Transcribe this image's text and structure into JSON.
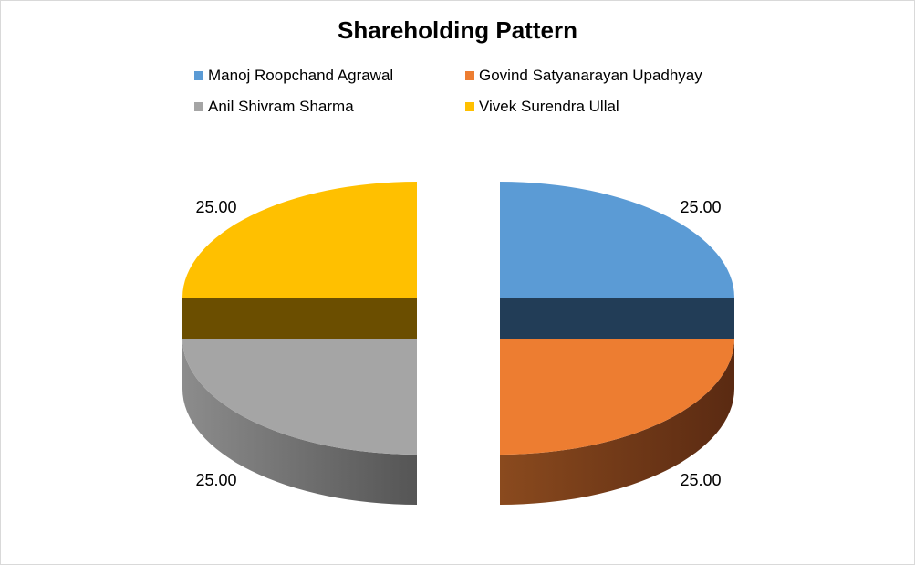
{
  "chart_data": {
    "type": "pie",
    "style": "3d-exploded",
    "title": "Shareholding Pattern",
    "legend_position": "top",
    "slices": [
      {
        "name": "Manoj Roopchand Agrawal",
        "value": 25.0,
        "label": "25.00",
        "color": "#5B9BD5",
        "side_color": "#223D57"
      },
      {
        "name": "Govind Satyanarayan Upadhyay",
        "value": 25.0,
        "label": "25.00",
        "color": "#ED7D31",
        "side_color": "#6A3414"
      },
      {
        "name": "Anil Shivram Sharma",
        "value": 25.0,
        "label": "25.00",
        "color": "#A5A5A5",
        "side_color": "#666666"
      },
      {
        "name": "Vivek Surendra Ullal",
        "value": 25.0,
        "label": "25.00",
        "color": "#FFC000",
        "side_color": "#6B4E00"
      }
    ]
  }
}
